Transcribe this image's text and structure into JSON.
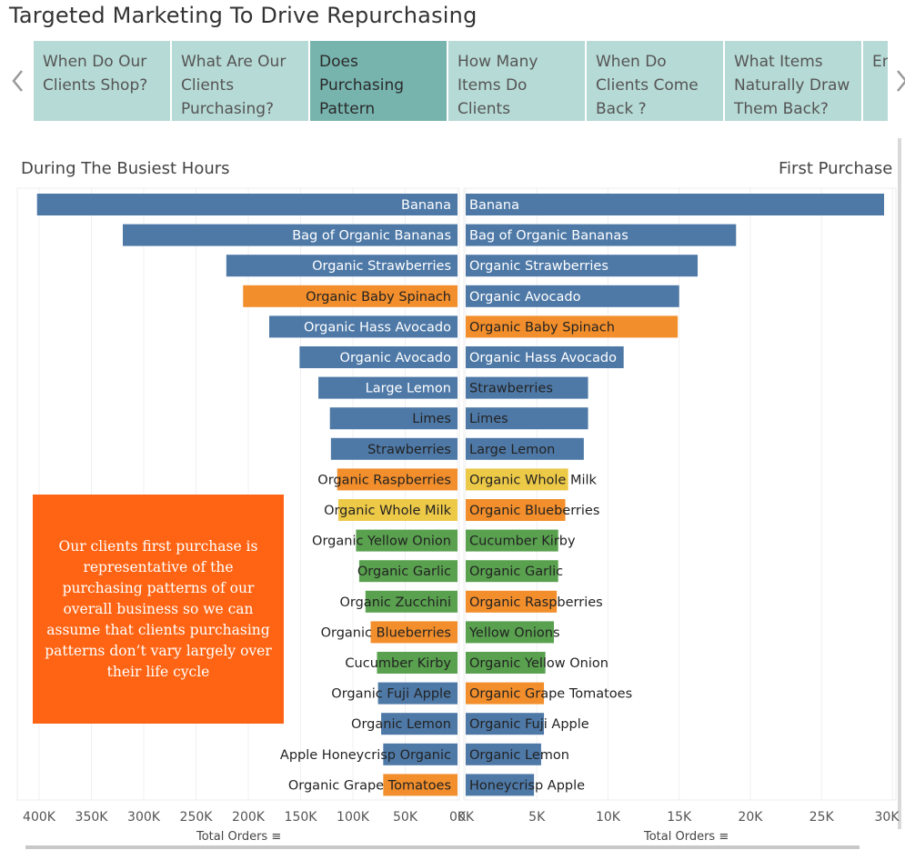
{
  "dashboard": {
    "title": "Targeted Marketing To Drive Repurchasing",
    "story_tabs": [
      {
        "label": "When Do Our Clients Shop?",
        "active": false
      },
      {
        "label": "What Are Our Clients Purchasing?",
        "active": false
      },
      {
        "label": "Does Purchasing Pattern",
        "active": true
      },
      {
        "label": "How Many Items Do Clients",
        "active": false
      },
      {
        "label": "When Do Clients Come Back ?",
        "active": false
      },
      {
        "label": "What Items Naturally Draw Them Back?",
        "active": false
      },
      {
        "label": "En Th Po",
        "active": false
      }
    ],
    "left_sheet_title": "During The Busiest Hours",
    "right_sheet_title": "First Purchase",
    "callout": "Our clients first purchase is representative of the purchasing patterns of our overall business so we can assume that clients purchasing patterns don’t vary largely over their life cycle",
    "left_axis_title": "Total Orders",
    "right_axis_title": "Total Orders",
    "icons": [
      "chevron-left-icon",
      "chevron-right-icon",
      "sort-icon"
    ],
    "colors": {
      "blue": "#4e79a7",
      "orange": "#f28e2b",
      "yellow": "#edc948",
      "green": "#59a14f",
      "callout": "#fe6413",
      "tab": "#b6dad5",
      "tab_active": "#78b4ae"
    }
  },
  "chart_data": [
    {
      "type": "bar",
      "orientation": "horizontal",
      "direction": "reversed",
      "title": "During The Busiest Hours",
      "xlabel": "Total Orders",
      "xlim": [
        0,
        410000
      ],
      "ticks": [
        400000,
        350000,
        300000,
        250000,
        200000,
        150000,
        100000,
        50000,
        0
      ],
      "tick_labels": [
        "400K",
        "350K",
        "300K",
        "250K",
        "200K",
        "150K",
        "100K",
        "50K",
        "0K"
      ],
      "grid": true,
      "categories": [
        "Banana",
        "Bag of Organic Bananas",
        "Organic Strawberries",
        "Organic Baby Spinach",
        "Organic Hass Avocado",
        "Organic Avocado",
        "Large Lemon",
        "Limes",
        "Strawberries",
        "Organic Raspberries",
        "Organic Whole Milk",
        "Organic Yellow Onion",
        "Organic Garlic",
        "Organic Zucchini",
        "Organic Blueberries",
        "Cucumber Kirby",
        "Organic Fuji Apple",
        "Organic Lemon",
        "Apple Honeycrisp Organic",
        "Organic Grape Tomatoes"
      ],
      "values": [
        402000,
        320000,
        221000,
        205000,
        180000,
        151000,
        133000,
        122000,
        121000,
        115000,
        114000,
        97000,
        94000,
        88000,
        83000,
        77000,
        76000,
        73000,
        71000,
        71000
      ],
      "colors": [
        "blue",
        "blue",
        "blue",
        "orange",
        "blue",
        "blue",
        "blue",
        "blue",
        "blue",
        "orange",
        "yellow",
        "green",
        "green",
        "green",
        "orange",
        "green",
        "blue",
        "blue",
        "blue",
        "orange"
      ]
    },
    {
      "type": "bar",
      "orientation": "horizontal",
      "title": "First Purchase",
      "xlabel": "Total Orders",
      "xlim": [
        0,
        30000
      ],
      "ticks": [
        0,
        5000,
        10000,
        15000,
        20000,
        25000,
        30000
      ],
      "tick_labels": [
        "0K",
        "5K",
        "10K",
        "15K",
        "20K",
        "25K",
        "30K"
      ],
      "grid": true,
      "categories": [
        "Banana",
        "Bag of Organic Bananas",
        "Organic Strawberries",
        "Organic Avocado",
        "Organic Baby Spinach",
        "Organic Hass Avocado",
        "Strawberries",
        "Limes",
        "Large Lemon",
        "Organic Whole Milk",
        "Organic Blueberries",
        "Cucumber Kirby",
        "Organic Garlic",
        "Organic Raspberries",
        "Yellow Onions",
        "Organic Yellow Onion",
        "Organic Grape Tomatoes",
        "Organic Fuji Apple",
        "Organic Lemon",
        "Honeycrisp Apple"
      ],
      "values": [
        29400,
        19000,
        16300,
        15000,
        14900,
        11100,
        8600,
        8600,
        8300,
        7200,
        7000,
        6500,
        6500,
        6400,
        6200,
        5600,
        5500,
        5500,
        5300,
        4800
      ],
      "colors": [
        "blue",
        "blue",
        "blue",
        "blue",
        "orange",
        "blue",
        "blue",
        "blue",
        "blue",
        "yellow",
        "orange",
        "green",
        "green",
        "orange",
        "green",
        "green",
        "orange",
        "blue",
        "blue",
        "blue"
      ]
    }
  ]
}
